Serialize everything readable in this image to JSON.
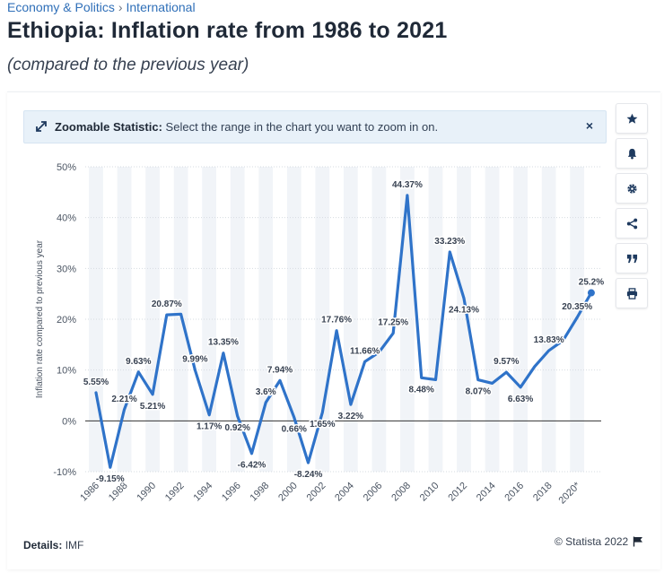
{
  "breadcrumb": {
    "items": [
      "Economy & Politics",
      "International"
    ]
  },
  "header": {
    "title": "Ethiopia: Inflation rate from 1986 to 2021",
    "subtitle": "(compared to the previous year)"
  },
  "zoom_banner": {
    "label": "Zoomable Statistic:",
    "text": "Select the range in the chart you want to zoom in on.",
    "close": "×"
  },
  "sidebar": {
    "buttons": [
      {
        "name": "favorite-button",
        "icon": "star-icon"
      },
      {
        "name": "notification-button",
        "icon": "bell-icon"
      },
      {
        "name": "settings-button",
        "icon": "gear-icon"
      },
      {
        "name": "share-button",
        "icon": "share-icon"
      },
      {
        "name": "cite-button",
        "icon": "quote-icon"
      },
      {
        "name": "print-button",
        "icon": "printer-icon"
      }
    ]
  },
  "footer": {
    "details_label": "Details:",
    "details_value": "IMF",
    "copyright": "© Statista 2022"
  },
  "colors": {
    "line": "#2f73c9",
    "accent": "#2f6fb8",
    "band": "#f1f4f8"
  },
  "chart_data": {
    "type": "line",
    "title": "Ethiopia: Inflation rate from 1986 to 2021",
    "xlabel": "",
    "ylabel": "Inflation rate compared to previous year",
    "ylim": [
      -10,
      50
    ],
    "yticks": [
      -10,
      0,
      10,
      20,
      30,
      40,
      50
    ],
    "ytick_labels": [
      "-10%",
      "0%",
      "10%",
      "20%",
      "30%",
      "40%",
      "50%"
    ],
    "x_tick_labels": [
      "1986",
      "1988",
      "1990",
      "1992",
      "1994",
      "1996",
      "1998",
      "2000",
      "2002",
      "2004",
      "2006",
      "2008",
      "2010",
      "2012",
      "2014",
      "2016",
      "2018",
      "2020*"
    ],
    "x_tick_years": [
      1986,
      1988,
      1990,
      1992,
      1994,
      1996,
      1998,
      2000,
      2002,
      2004,
      2006,
      2008,
      2010,
      2012,
      2014,
      2016,
      2018,
      2020
    ],
    "grid": true,
    "legend": "none",
    "series": [
      {
        "name": "Inflation rate",
        "x": [
          1986,
          1987,
          1988,
          1989,
          1990,
          1991,
          1992,
          1993,
          1994,
          1995,
          1996,
          1997,
          1998,
          1999,
          2000,
          2001,
          2002,
          2003,
          2004,
          2005,
          2006,
          2007,
          2008,
          2009,
          2010,
          2011,
          2012,
          2013,
          2014,
          2015,
          2016,
          2017,
          2018,
          2019,
          2020,
          2021
        ],
        "values": [
          5.55,
          -9.15,
          2.21,
          9.63,
          5.21,
          20.87,
          21.0,
          9.99,
          1.17,
          13.35,
          0.92,
          -6.42,
          3.6,
          7.94,
          0.66,
          -8.24,
          1.65,
          17.76,
          3.22,
          11.66,
          13.5,
          17.25,
          44.37,
          8.48,
          8.1,
          33.23,
          24.13,
          8.07,
          7.4,
          9.57,
          6.63,
          10.7,
          13.83,
          15.8,
          20.35,
          25.2
        ]
      }
    ],
    "data_labels": [
      {
        "x": 1986,
        "text": "5.55%"
      },
      {
        "x": 1987,
        "text": "-9.15%"
      },
      {
        "x": 1988,
        "text": "2.21%"
      },
      {
        "x": 1989,
        "text": "9.63%"
      },
      {
        "x": 1990,
        "text": "5.21%"
      },
      {
        "x": 1991,
        "text": "20.87%"
      },
      {
        "x": 1993,
        "text": "9.99%"
      },
      {
        "x": 1994,
        "text": "1.17%"
      },
      {
        "x": 1995,
        "text": "13.35%"
      },
      {
        "x": 1996,
        "text": "0.92%"
      },
      {
        "x": 1997,
        "text": "-6.42%"
      },
      {
        "x": 1998,
        "text": "3.6%"
      },
      {
        "x": 1999,
        "text": "7.94%"
      },
      {
        "x": 2000,
        "text": "0.66%"
      },
      {
        "x": 2001,
        "text": "-8.24%"
      },
      {
        "x": 2002,
        "text": "1.65%"
      },
      {
        "x": 2003,
        "text": "17.76%"
      },
      {
        "x": 2004,
        "text": "3.22%"
      },
      {
        "x": 2005,
        "text": "11.66%"
      },
      {
        "x": 2007,
        "text": "17.25%"
      },
      {
        "x": 2008,
        "text": "44.37%"
      },
      {
        "x": 2009,
        "text": "8.48%"
      },
      {
        "x": 2011,
        "text": "33.23%"
      },
      {
        "x": 2012,
        "text": "24.13%"
      },
      {
        "x": 2013,
        "text": "8.07%"
      },
      {
        "x": 2015,
        "text": "9.57%"
      },
      {
        "x": 2016,
        "text": "6.63%"
      },
      {
        "x": 2018,
        "text": "13.83%"
      },
      {
        "x": 2020,
        "text": "20.35%"
      },
      {
        "x": 2021,
        "text": "25.2%"
      }
    ]
  }
}
